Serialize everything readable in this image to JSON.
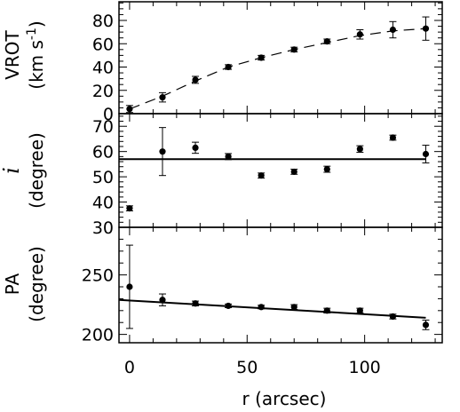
{
  "chart_data": [
    {
      "type": "scatter",
      "panel": "top",
      "ylabel": "VROT",
      "yunit": "(km s-1)",
      "xlim": [
        -4.5,
        133
      ],
      "ylim": [
        0,
        96
      ],
      "yticks_major": [
        0,
        20,
        40,
        60,
        80
      ],
      "yticks_minor_step": 5,
      "yticklabels": [
        "0",
        "20",
        "40",
        "60",
        "80"
      ],
      "grid": false,
      "series": [
        {
          "style": "points-with-errorbars",
          "x": [
            0,
            14,
            28,
            42,
            56,
            70,
            84,
            98,
            112,
            126
          ],
          "y": [
            4,
            14,
            29,
            40,
            48,
            55,
            62,
            68,
            72,
            73
          ],
          "yerr": [
            3,
            4,
            3,
            2,
            2,
            2,
            2,
            4,
            7,
            10
          ]
        },
        {
          "style": "dashed-line",
          "x": [
            0,
            14,
            28,
            42,
            56,
            70,
            84,
            98,
            112,
            126
          ],
          "y": [
            4,
            15,
            28,
            40,
            48,
            55,
            61,
            67,
            71,
            73
          ]
        }
      ]
    },
    {
      "type": "scatter",
      "panel": "middle",
      "ylabel": "i",
      "yunit": "(degree)",
      "xlim": [
        -4.5,
        133
      ],
      "ylim": [
        30,
        75
      ],
      "yticks_major": [
        30,
        40,
        50,
        60,
        70
      ],
      "yticks_minor_step": 2,
      "yticklabels": [
        "30",
        "40",
        "50",
        "60",
        "70"
      ],
      "grid": false,
      "series": [
        {
          "style": "points-with-errorbars",
          "x": [
            0,
            14,
            28,
            42,
            56,
            70,
            84,
            98,
            112,
            126
          ],
          "y": [
            37.5,
            60,
            61.5,
            58,
            50.5,
            52,
            53,
            61,
            65.5,
            59
          ],
          "yerr": [
            1,
            9.5,
            2.2,
            1.2,
            1,
            1,
            1.2,
            1.3,
            1,
            3.5
          ]
        },
        {
          "style": "solid-line",
          "x": [
            -4.5,
            126
          ],
          "y": [
            57,
            57
          ]
        }
      ]
    },
    {
      "type": "scatter",
      "panel": "bottom",
      "ylabel": "PA",
      "yunit": "(degree)",
      "xlabel": "r (arcsec)",
      "xlim": [
        -4.5,
        133
      ],
      "ylim": [
        193,
        290
      ],
      "xticks_major": [
        0,
        50,
        100
      ],
      "xticks_minor_step": 10,
      "xticklabels": [
        "0",
        "50",
        "100"
      ],
      "yticks_major": [
        200,
        250
      ],
      "yticks_minor_step": 10,
      "yticklabels": [
        "200",
        "250"
      ],
      "grid": false,
      "series": [
        {
          "style": "points-with-errorbars",
          "x": [
            0,
            14,
            28,
            42,
            56,
            70,
            84,
            98,
            112,
            126
          ],
          "y": [
            240,
            229,
            226,
            224,
            223,
            223,
            220,
            220,
            215,
            208
          ],
          "yerr": [
            35,
            5,
            2,
            1.5,
            1.5,
            2,
            2,
            2,
            2,
            4
          ]
        },
        {
          "style": "solid-line",
          "x": [
            -4.5,
            126
          ],
          "y": [
            229,
            214
          ]
        }
      ]
    }
  ]
}
